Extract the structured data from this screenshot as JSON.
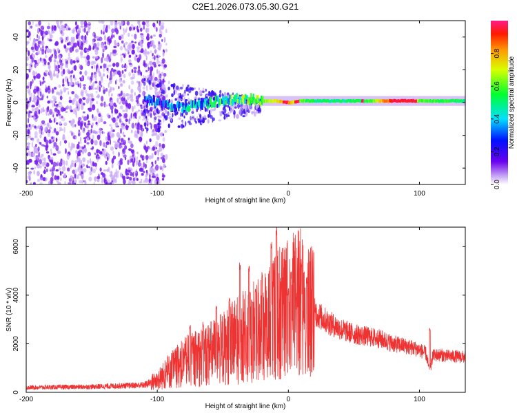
{
  "title": "C2E1.2026.073.05.30.G21",
  "colors": {
    "snr_line": "#ee3333",
    "speckle": "#7a22ee",
    "speckle_light": "#c9a8f5"
  },
  "chart_data": [
    {
      "type": "heatmap",
      "name": "spectrogram",
      "xlabel": "Height of straight line (km)",
      "ylabel": "Frequency (Hz)",
      "xlim": [
        -200,
        135
      ],
      "ylim": [
        -50,
        50
      ],
      "xticks": [
        -200,
        -100,
        0,
        100
      ],
      "xtick_labels": [
        "-200",
        "-100",
        "0",
        "100"
      ],
      "yticks": [
        -40,
        -20,
        0,
        20,
        40
      ],
      "ytick_labels": [
        "-40",
        "-20",
        "0",
        "20",
        "40"
      ],
      "colorbar": {
        "label": "Normalized spectral amplitude",
        "range": [
          0.0,
          1.0
        ],
        "ticks": [
          0.0,
          0.2,
          0.4,
          0.6,
          0.8
        ],
        "tick_labels": [
          "0.0",
          "0.2",
          "0.4",
          "0.6",
          "0.8"
        ]
      },
      "signal_trace": {
        "x": [
          -110,
          -100,
          -90,
          -80,
          -70,
          -60,
          -50,
          -40,
          -30,
          -20,
          -10,
          0,
          10,
          20,
          40,
          60,
          80,
          100,
          135
        ],
        "freq": [
          2,
          0,
          -2,
          -3,
          -1,
          0,
          1,
          2,
          2,
          1,
          1,
          0,
          1,
          1,
          1,
          1,
          1,
          1,
          1
        ],
        "amplitude": [
          0.2,
          0.25,
          0.3,
          0.32,
          0.35,
          0.4,
          0.45,
          0.5,
          0.55,
          0.6,
          0.7,
          0.85,
          0.6,
          0.5,
          0.5,
          0.55,
          0.95,
          0.6,
          0.5
        ]
      }
    },
    {
      "type": "line",
      "name": "snr",
      "xlabel": "Height of straight line (km)",
      "ylabel": "SNR (10 * v/v)",
      "xlim": [
        -200,
        135
      ],
      "ylim": [
        0,
        6800
      ],
      "xticks": [
        -200,
        -100,
        0,
        100
      ],
      "xtick_labels": [
        "-200",
        "-100",
        "0",
        "100"
      ],
      "yticks": [
        0,
        2000,
        4000,
        6000
      ],
      "ytick_labels": [
        "0",
        "2000",
        "4000",
        "6000"
      ],
      "envelope": {
        "x": [
          -200,
          -150,
          -110,
          -100,
          -90,
          -80,
          -70,
          -60,
          -50,
          -40,
          -30,
          -20,
          -15,
          -10,
          -5,
          0,
          5,
          10,
          15,
          20,
          30,
          40,
          50,
          60,
          70,
          80,
          90,
          100,
          105,
          108,
          110,
          115,
          120,
          135
        ],
        "y": [
          200,
          230,
          300,
          500,
          900,
          1200,
          1400,
          1600,
          1800,
          2100,
          2400,
          2700,
          2900,
          3100,
          3300,
          3500,
          3600,
          3700,
          3500,
          3300,
          2900,
          2600,
          2400,
          2300,
          2200,
          2000,
          1900,
          1750,
          1600,
          800,
          1500,
          1550,
          1500,
          1450
        ]
      },
      "peaks": {
        "x": [
          -75,
          -65,
          -55,
          -45,
          -37,
          -30,
          -25,
          -20,
          -13,
          -9,
          0,
          2,
          10,
          14,
          108
        ],
        "y": [
          2800,
          2900,
          3600,
          3900,
          5400,
          5200,
          4300,
          5000,
          6300,
          6900,
          4300,
          5000,
          5500,
          4800,
          2700
        ]
      }
    }
  ]
}
